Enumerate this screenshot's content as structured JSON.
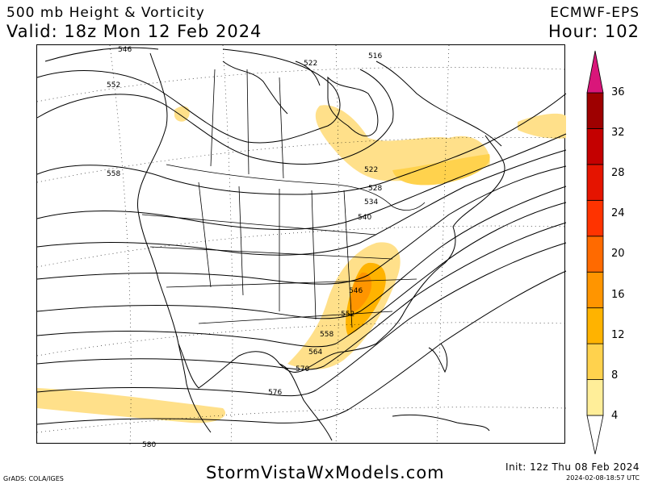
{
  "header": {
    "title": "500 mb Height & Vorticity",
    "valid": "Valid: 18z Mon 12 Feb 2024",
    "model": "ECMWF-EPS",
    "hour": "Hour: 102"
  },
  "colorbar": {
    "labels": [
      "36",
      "32",
      "28",
      "24",
      "20",
      "16",
      "12",
      "8",
      "4"
    ],
    "colors": [
      "#ffee99",
      "#ffd24d",
      "#ffb300",
      "#ff9500",
      "#ff6a00",
      "#ff3300",
      "#e51400",
      "#c40000",
      "#9e0000",
      "#d9167a"
    ]
  },
  "contours": {
    "labels": [
      "546",
      "552",
      "558",
      "522",
      "516",
      "522",
      "528",
      "534",
      "540",
      "546",
      "552",
      "558",
      "564",
      "570",
      "576",
      "580"
    ]
  },
  "footer": {
    "site": "StormVistaWxModels.com",
    "grads": "GrADS: COLA/IGES",
    "init": "Init: 12z Thu 08 Feb 2024",
    "timestamp": "2024-02-08-18:57 UTC"
  }
}
